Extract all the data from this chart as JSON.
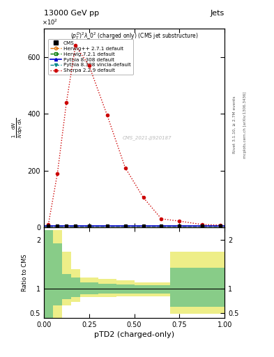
{
  "title_top": "13000 GeV pp",
  "title_right": "Jets",
  "subtitle": "$(p_T^D)^2\\lambda\\_0^2$ (charged only) (CMS jet substructure)",
  "watermark": "CMS_2021-JJ920187",
  "rivet_label": "Rivet 3.1.10, ≥ 2.7M events",
  "arxiv_label": "mcplots.cern.ch [arXiv:1306.3436]",
  "xlabel": "pTD2 (charged-only)",
  "ylim_main": [
    0,
    700
  ],
  "ylim_ratio": [
    0.4,
    2.25
  ],
  "xlim": [
    0.0,
    1.0
  ],
  "sherpa_x": [
    0.025,
    0.075,
    0.125,
    0.175,
    0.25,
    0.35,
    0.45,
    0.55,
    0.65,
    0.75,
    0.875,
    0.975
  ],
  "sherpa_y": [
    10,
    190,
    440,
    640,
    570,
    395,
    210,
    105,
    30,
    22,
    10,
    8
  ],
  "cms_x": [
    0.025,
    0.075,
    0.125,
    0.175,
    0.25,
    0.35,
    0.45,
    0.55,
    0.65,
    0.75,
    0.875,
    0.975
  ],
  "cms_y": [
    5,
    5,
    5,
    5,
    5,
    5,
    5,
    5,
    5,
    5,
    5,
    5
  ],
  "ratio_bins": [
    0.0,
    0.05,
    0.1,
    0.15,
    0.2,
    0.3,
    0.4,
    0.5,
    0.6,
    0.7,
    0.75,
    1.0
  ],
  "ratio_yellow_low": [
    0.4,
    0.4,
    0.65,
    0.72,
    0.82,
    0.83,
    0.84,
    0.84,
    0.84,
    0.48,
    0.48,
    0.48
  ],
  "ratio_yellow_high": [
    2.2,
    2.2,
    1.75,
    1.4,
    1.22,
    1.2,
    1.16,
    1.12,
    1.12,
    1.75,
    1.75,
    1.75
  ],
  "ratio_green_low": [
    0.4,
    0.65,
    0.78,
    0.83,
    0.88,
    0.89,
    0.9,
    0.9,
    0.9,
    0.63,
    0.63,
    0.63
  ],
  "ratio_green_high": [
    2.2,
    1.92,
    1.3,
    1.22,
    1.12,
    1.1,
    1.08,
    1.06,
    1.06,
    1.42,
    1.42,
    1.42
  ],
  "colors": {
    "cms": "#000000",
    "herwig_pp": "#e07000",
    "herwig72": "#007700",
    "pythia_default": "#0000cc",
    "pythia_vincia": "#008888",
    "sherpa": "#cc0000"
  },
  "legend_entries": [
    {
      "label": "CMS",
      "color": "#000000",
      "marker": "s",
      "linestyle": "none"
    },
    {
      "label": "Herwig++ 2.7.1 default",
      "color": "#e07000",
      "marker": "o",
      "linestyle": "--"
    },
    {
      "label": "Herwig 7.2.1 default",
      "color": "#007700",
      "marker": "s",
      "linestyle": "--"
    },
    {
      "label": "Pythia 8.308 default",
      "color": "#0000cc",
      "marker": "^",
      "linestyle": "-"
    },
    {
      "label": "Pythia 8.308 vincia-default",
      "color": "#008888",
      "marker": "v",
      "linestyle": "--"
    },
    {
      "label": "Sherpa 2.2.9 default",
      "color": "#cc0000",
      "marker": "o",
      "linestyle": ":"
    }
  ],
  "background_color": "#ffffff"
}
